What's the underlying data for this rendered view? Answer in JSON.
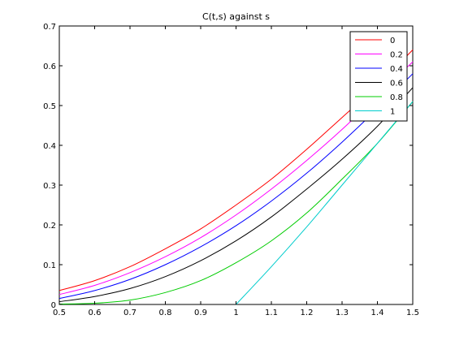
{
  "chart_data": {
    "type": "line",
    "title": "C(t,s) against s",
    "xlabel": "",
    "ylabel": "",
    "xlim": [
      0.5,
      1.5
    ],
    "ylim": [
      0,
      0.7
    ],
    "xticks": [
      0.5,
      0.6,
      0.7,
      0.8,
      0.9,
      1,
      1.1,
      1.2,
      1.3,
      1.4,
      1.5
    ],
    "yticks": [
      0,
      0.1,
      0.2,
      0.3,
      0.4,
      0.5,
      0.6,
      0.7
    ],
    "grid": false,
    "legend_position": "top-right",
    "x": [
      0.5,
      0.6,
      0.7,
      0.8,
      0.9,
      1.0,
      1.1,
      1.2,
      1.3,
      1.4,
      1.5
    ],
    "series": [
      {
        "name": "0",
        "color": "#ff0000",
        "x": [
          0.5,
          0.6,
          0.7,
          0.8,
          0.9,
          1.0,
          1.1,
          1.2,
          1.3,
          1.4,
          1.5
        ],
        "values": [
          0.035,
          0.06,
          0.095,
          0.14,
          0.19,
          0.25,
          0.315,
          0.39,
          0.47,
          0.55,
          0.64
        ]
      },
      {
        "name": "0.2",
        "color": "#ff00ff",
        "x": [
          0.5,
          0.6,
          0.7,
          0.8,
          0.9,
          1.0,
          1.1,
          1.2,
          1.3,
          1.4,
          1.5
        ],
        "values": [
          0.025,
          0.048,
          0.08,
          0.12,
          0.168,
          0.225,
          0.29,
          0.362,
          0.44,
          0.525,
          0.61
        ]
      },
      {
        "name": "0.4",
        "color": "#0000ff",
        "x": [
          0.5,
          0.6,
          0.7,
          0.8,
          0.9,
          1.0,
          1.1,
          1.2,
          1.3,
          1.4,
          1.5
        ],
        "values": [
          0.015,
          0.035,
          0.063,
          0.1,
          0.145,
          0.198,
          0.26,
          0.33,
          0.408,
          0.492,
          0.58
        ]
      },
      {
        "name": "0.6",
        "color": "#000000",
        "x": [
          0.5,
          0.6,
          0.7,
          0.8,
          0.9,
          1.0,
          1.1,
          1.2,
          1.3,
          1.4,
          1.5
        ],
        "values": [
          0.007,
          0.02,
          0.04,
          0.07,
          0.11,
          0.16,
          0.22,
          0.29,
          0.365,
          0.448,
          0.545
        ]
      },
      {
        "name": "0.8",
        "color": "#00cc00",
        "x": [
          0.5,
          0.6,
          0.7,
          0.8,
          0.9,
          1.0,
          1.1,
          1.2,
          1.3,
          1.4,
          1.5
        ],
        "values": [
          0.001,
          0.003,
          0.011,
          0.03,
          0.06,
          0.105,
          0.16,
          0.23,
          0.315,
          0.405,
          0.51
        ]
      },
      {
        "name": "1",
        "color": "#00cccc",
        "x": [
          1.0,
          1.1,
          1.2,
          1.3,
          1.4,
          1.5
        ],
        "values": [
          0.0,
          0.095,
          0.195,
          0.3,
          0.405,
          0.51
        ]
      }
    ]
  }
}
